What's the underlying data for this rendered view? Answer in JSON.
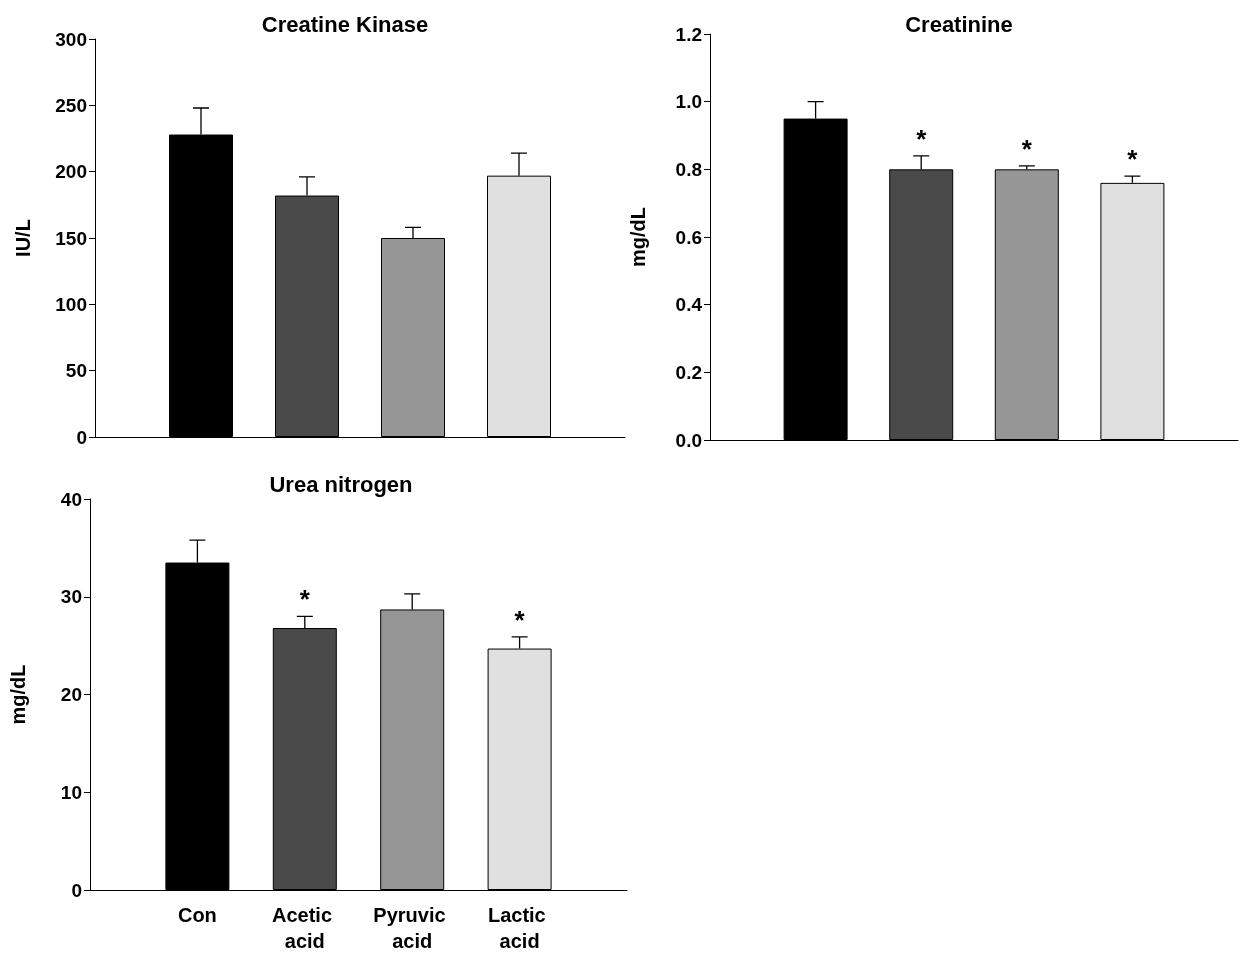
{
  "chart_data": [
    {
      "type": "bar",
      "title": "Creatine Kinase",
      "ylabel": "IU/L",
      "categories": [
        "Con",
        "Acetic acid",
        "Pyruvic acid",
        "Lactic acid"
      ],
      "values": [
        228,
        182,
        150,
        197
      ],
      "colors": [
        "#000000",
        "#4a4a4a",
        "#969696",
        "#e0e0e0"
      ],
      "errors": [
        [
          228,
          248
        ],
        [
          182,
          196
        ],
        [
          150,
          158
        ],
        [
          197,
          214
        ]
      ],
      "ylim": [
        0,
        300
      ],
      "yticks": [
        0,
        50,
        100,
        150,
        200,
        250,
        300
      ],
      "tick_labels": "y",
      "grid": false
    },
    {
      "type": "bar",
      "title": "Creatinine",
      "ylabel": "mg/dL",
      "categories": [
        null,
        null,
        null,
        null
      ],
      "values": [
        0.95,
        0.8,
        0.8,
        0.76
      ],
      "colors": [
        "#000000",
        "#4a4a4a",
        "#969696",
        "#e0e0e0"
      ],
      "errors": [
        [
          0.95,
          1.0
        ],
        [
          0.8,
          0.84
        ],
        [
          0.8,
          0.81
        ],
        [
          0.76,
          0.78
        ]
      ],
      "ylim": [
        0,
        1.2
      ],
      "yticks": [
        {
          "value": 0,
          "label": "0.0"
        },
        0.2,
        0.4,
        0.6,
        0.8,
        {
          "value": 1,
          "label": "1.0"
        },
        1.2
      ],
      "tick_labels": "y",
      "grid": false,
      "value_labels": [
        null,
        "*",
        "*",
        "*"
      ]
    },
    {
      "type": "bar",
      "title": "Urea nitrogen",
      "ylabel": "mg/dL",
      "categories": [
        "Con",
        "Acetic acid",
        "Pyruvic acid",
        "Lactic acid"
      ],
      "values": [
        33.5,
        26.8,
        28.7,
        24.7
      ],
      "colors": [
        "#000000",
        "#4a4a4a",
        "#969696",
        "#e0e0e0"
      ],
      "errors": [
        [
          33.5,
          35.8
        ],
        [
          26.8,
          28.0
        ],
        [
          28.7,
          30.3
        ],
        [
          24.7,
          25.9
        ]
      ],
      "ylim": [
        0,
        40
      ],
      "yticks": [
        0,
        10,
        20,
        30,
        40
      ],
      "grid": false,
      "value_labels": [
        null,
        "*",
        null,
        "*"
      ]
    }
  ]
}
